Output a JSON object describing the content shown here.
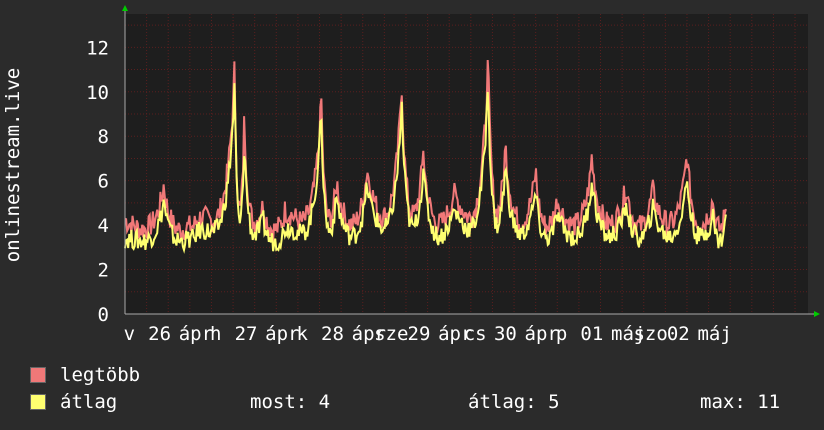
{
  "colors": {
    "background": "#2b2b2b",
    "plot_background": "#1e1e1e",
    "grid": "#5a1f1f",
    "series_max": "#f07878",
    "series_avg": "#ffff70",
    "axis_arrow": "#00cc00"
  },
  "chart_data": {
    "type": "line",
    "ylabel": "onlinestream.live",
    "ylim": [
      0,
      13.5
    ],
    "yticks": [
      0,
      2,
      4,
      6,
      8,
      10,
      12
    ],
    "xlim": [
      0,
      7.9
    ],
    "grid": true,
    "legend_position": "bottom-left",
    "xtick_labels": [
      {
        "x": 0.05,
        "text": "v"
      },
      {
        "x": 0.4,
        "text": "26"
      },
      {
        "x": 0.82,
        "text": "ápr"
      },
      {
        "x": 1.05,
        "text": "h"
      },
      {
        "x": 1.4,
        "text": "27"
      },
      {
        "x": 1.82,
        "text": "ápr"
      },
      {
        "x": 2.05,
        "text": "k"
      },
      {
        "x": 2.4,
        "text": "28"
      },
      {
        "x": 2.82,
        "text": "ápr"
      },
      {
        "x": 3.08,
        "text": "sze"
      },
      {
        "x": 3.4,
        "text": "29"
      },
      {
        "x": 3.82,
        "text": "ápr"
      },
      {
        "x": 4.05,
        "text": "cs"
      },
      {
        "x": 4.4,
        "text": "30"
      },
      {
        "x": 4.82,
        "text": "ápr"
      },
      {
        "x": 5.05,
        "text": "p"
      },
      {
        "x": 5.4,
        "text": "01"
      },
      {
        "x": 5.82,
        "text": "máj"
      },
      {
        "x": 6.08,
        "text": "szo"
      },
      {
        "x": 6.4,
        "text": "02"
      },
      {
        "x": 6.82,
        "text": "máj"
      }
    ],
    "series": [
      {
        "name": "legtöbb",
        "color": "#f07878",
        "peaks": [
          {
            "x": 0.0,
            "base": 4.3
          },
          {
            "x": 0.45,
            "base": 6.0
          },
          {
            "x": 0.8,
            "base": 4.0
          },
          {
            "x": 1.27,
            "base": 11.8
          },
          {
            "x": 1.38,
            "base": 9.5
          },
          {
            "x": 1.6,
            "base": 5.0
          },
          {
            "x": 1.85,
            "base": 4.7
          },
          {
            "x": 2.27,
            "base": 10.2
          },
          {
            "x": 2.45,
            "base": 6.2
          },
          {
            "x": 2.8,
            "base": 6.8
          },
          {
            "x": 3.2,
            "base": 11.0
          },
          {
            "x": 3.45,
            "base": 7.6
          },
          {
            "x": 3.8,
            "base": 5.6
          },
          {
            "x": 4.2,
            "base": 12.2
          },
          {
            "x": 4.4,
            "base": 8.0
          },
          {
            "x": 4.75,
            "base": 6.7
          },
          {
            "x": 5.0,
            "base": 5.3
          },
          {
            "x": 5.4,
            "base": 7.3
          },
          {
            "x": 5.8,
            "base": 6.0
          },
          {
            "x": 6.1,
            "base": 5.8
          },
          {
            "x": 6.5,
            "base": 7.6
          },
          {
            "x": 6.8,
            "base": 5.3
          },
          {
            "x": 6.95,
            "base": 5.0
          }
        ]
      },
      {
        "name": "átlag",
        "color": "#ffff70",
        "peaks": [
          {
            "x": 0.0,
            "base": 3.4
          },
          {
            "x": 0.45,
            "base": 5.3
          },
          {
            "x": 0.8,
            "base": 3.4
          },
          {
            "x": 1.27,
            "base": 11.0
          },
          {
            "x": 1.38,
            "base": 8.3
          },
          {
            "x": 1.6,
            "base": 4.3
          },
          {
            "x": 1.85,
            "base": 3.9
          },
          {
            "x": 2.27,
            "base": 9.6
          },
          {
            "x": 2.45,
            "base": 5.5
          },
          {
            "x": 2.8,
            "base": 6.0
          },
          {
            "x": 3.2,
            "base": 10.0
          },
          {
            "x": 3.45,
            "base": 6.8
          },
          {
            "x": 3.8,
            "base": 4.8
          },
          {
            "x": 4.2,
            "base": 11.2
          },
          {
            "x": 4.4,
            "base": 7.0
          },
          {
            "x": 4.75,
            "base": 5.7
          },
          {
            "x": 5.0,
            "base": 4.6
          },
          {
            "x": 5.4,
            "base": 6.3
          },
          {
            "x": 5.8,
            "base": 5.2
          },
          {
            "x": 6.1,
            "base": 5.0
          },
          {
            "x": 6.5,
            "base": 6.4
          },
          {
            "x": 6.8,
            "base": 4.6
          },
          {
            "x": 6.95,
            "base": 4.4
          }
        ]
      }
    ]
  },
  "legend": {
    "items": [
      {
        "label": "legtöbb",
        "color": "#f07878"
      },
      {
        "label": "átlag",
        "color": "#ffff70"
      }
    ]
  },
  "stats": {
    "now": "most: 4",
    "avg": "átlag: 5",
    "max": "max: 11"
  }
}
